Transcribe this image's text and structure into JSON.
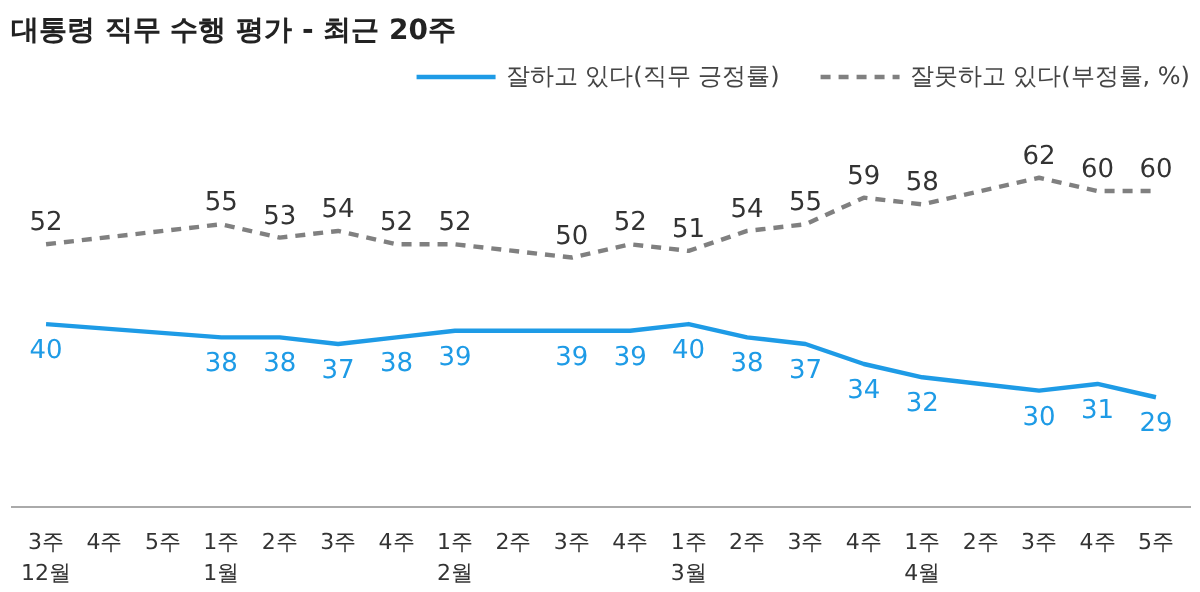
{
  "chart_data": {
    "type": "line",
    "title": "대통령 직무 수행 평가 - 최근 20주",
    "categories": [
      "3주\n12월",
      "4주",
      "5주",
      "1주\n1월",
      "2주",
      "3주",
      "4주",
      "1주\n2월",
      "2주",
      "3주",
      "4주",
      "1주\n3월",
      "2주",
      "3주",
      "4주",
      "1주\n4월",
      "2주",
      "3주",
      "4주",
      "5주"
    ],
    "series": [
      {
        "name": "잘하고 있다(직무 긍정률)",
        "color": "#1e9be6",
        "line_style": "solid",
        "values": [
          40,
          null,
          null,
          38,
          38,
          37,
          38,
          39,
          null,
          39,
          39,
          40,
          38,
          37,
          34,
          32,
          null,
          30,
          31,
          29
        ]
      },
      {
        "name": "잘못하고 있다(부정률, %)",
        "color": "#808080",
        "line_style": "dashed",
        "values": [
          52,
          null,
          null,
          55,
          53,
          54,
          52,
          52,
          null,
          50,
          52,
          51,
          54,
          55,
          59,
          58,
          null,
          62,
          60,
          60
        ]
      }
    ],
    "data_labels": true,
    "legend": "top right",
    "grid": false,
    "marker": "none"
  }
}
